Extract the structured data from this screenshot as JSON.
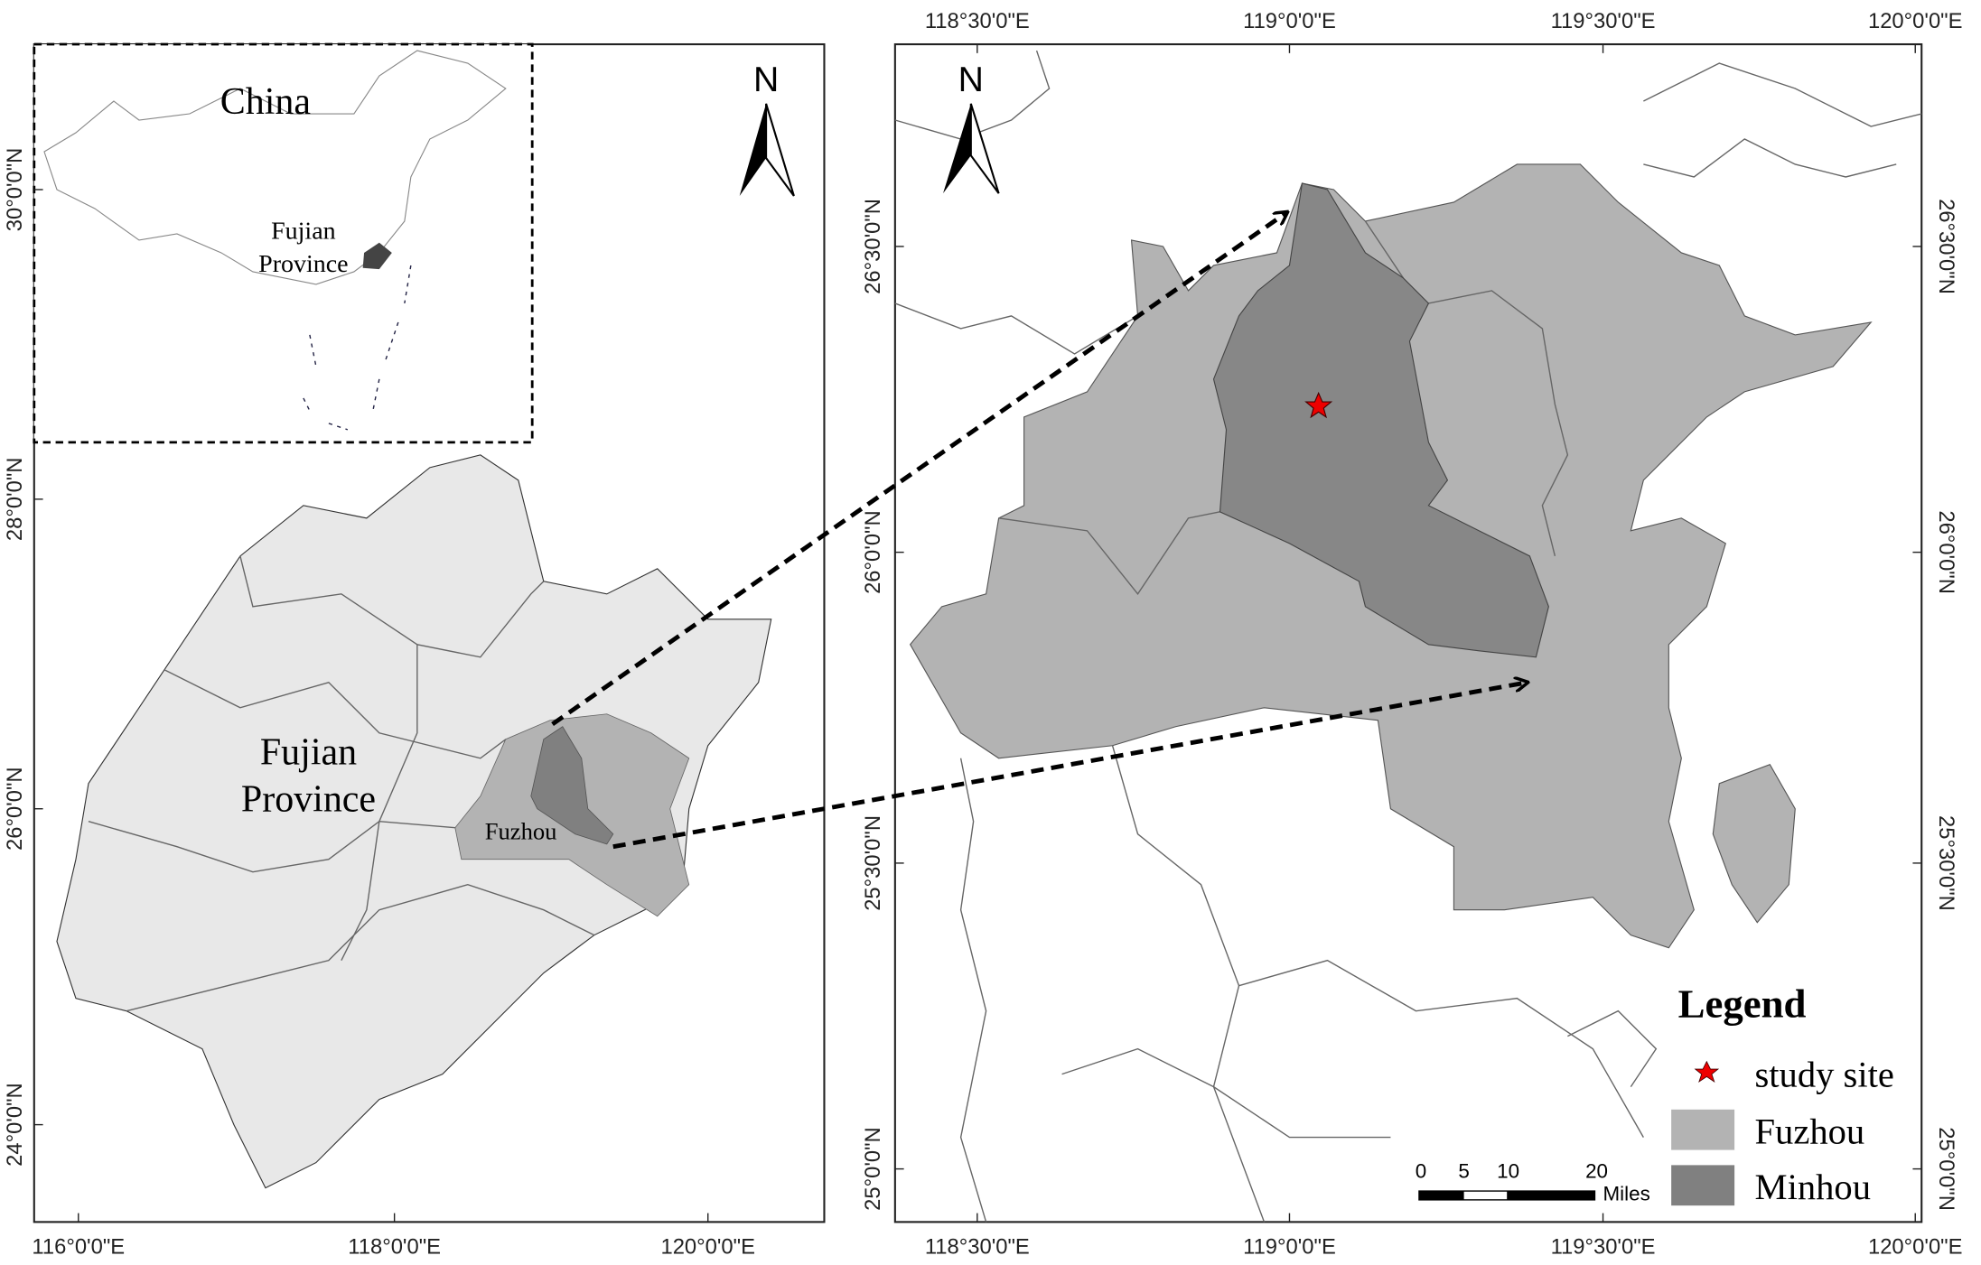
{
  "inset": {
    "country": "China",
    "province": [
      "Fujian",
      "Province"
    ]
  },
  "left_map": {
    "north": "N",
    "region": [
      "Fujian",
      "Province"
    ],
    "city": "Fuzhou",
    "x_labels": [
      "116°0'0\"E",
      "118°0'0\"E",
      "120°0'0\"E"
    ],
    "y_labels": [
      "30°0'0\"N",
      "28°0'0\"N",
      "26°0'0\"N",
      "24°0'0\"N"
    ]
  },
  "right_map": {
    "north": "N",
    "x_labels": [
      "118°30'0\"E",
      "119°0'0\"E",
      "119°30'0\"E",
      "120°0'0\"E"
    ],
    "y_labels": [
      "26°30'0\"N",
      "26°0'0\"N",
      "25°30'0\"N",
      "25°0'0\"N"
    ],
    "legend": {
      "title": "Legend",
      "items": [
        "study site",
        "Fuzhou",
        "Minhou"
      ]
    },
    "scale_bar": {
      "ticks": [
        "0",
        "5",
        "10",
        "20"
      ],
      "unit": "Miles"
    }
  }
}
